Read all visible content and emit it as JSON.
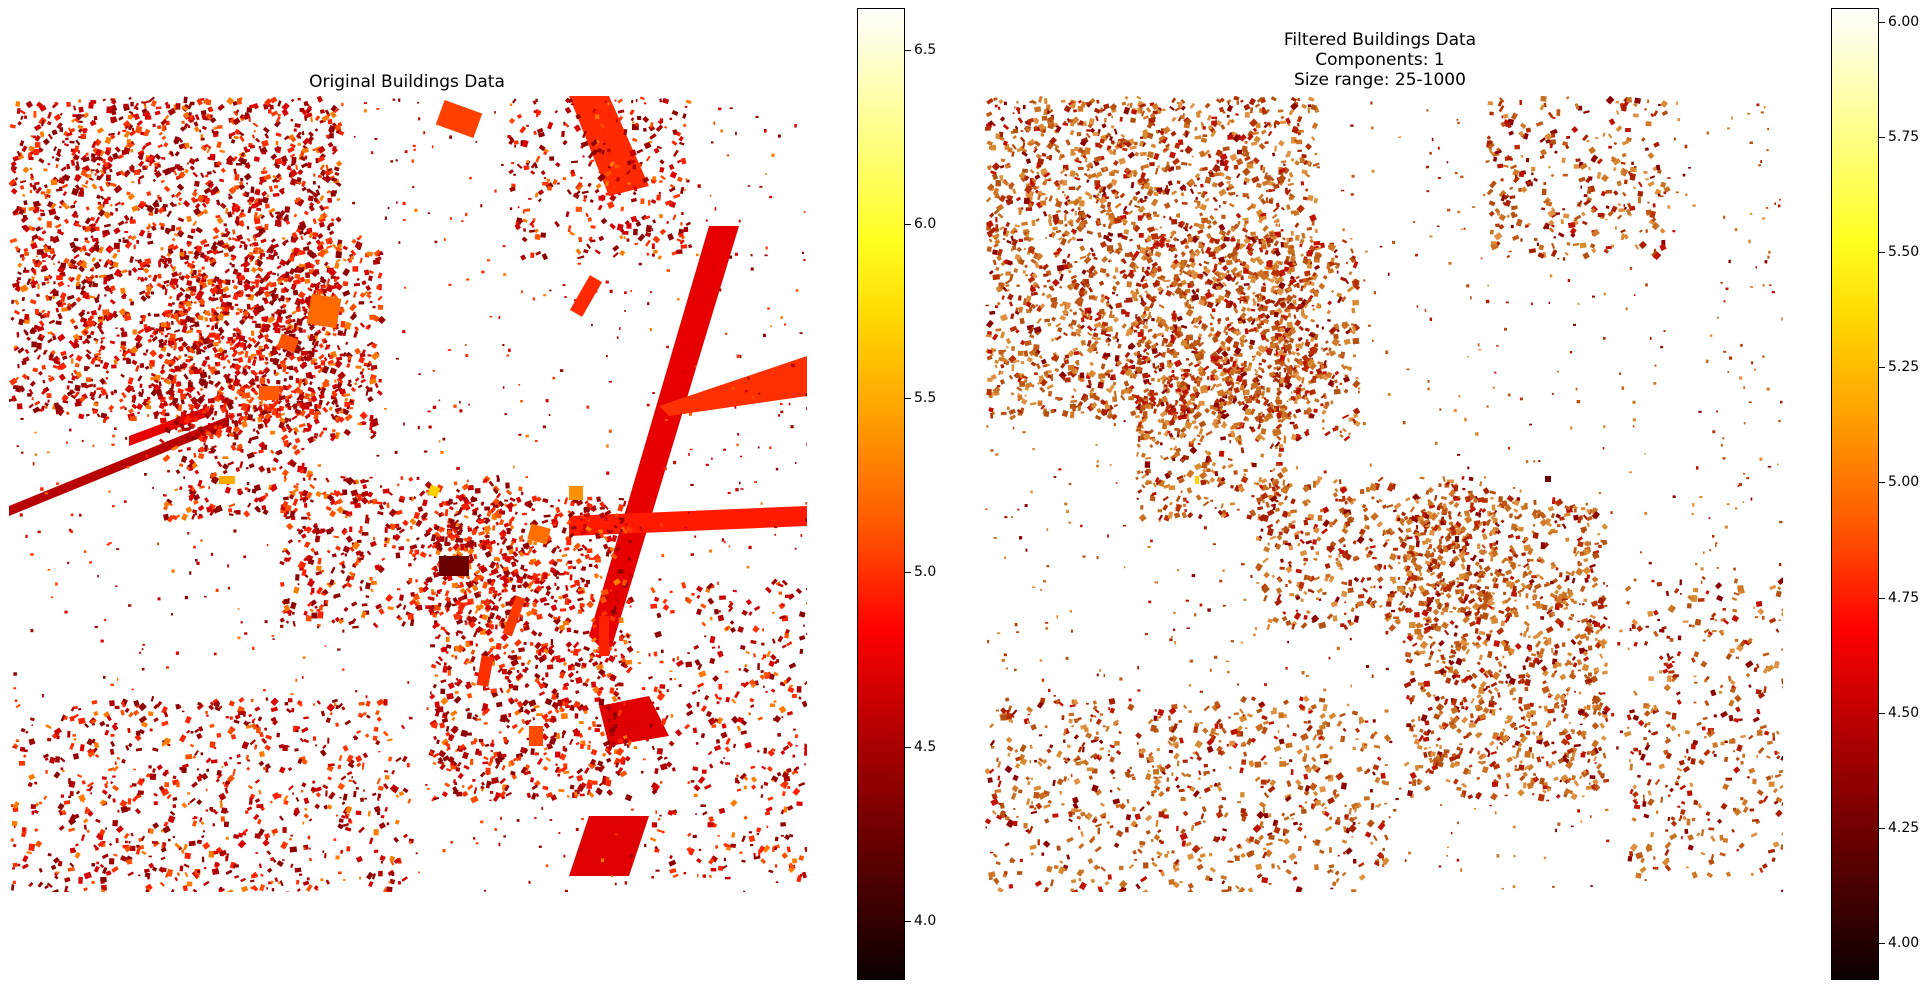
{
  "chart_data": [
    {
      "type": "heatmap",
      "title": "Original Buildings Data",
      "colormap": "hot",
      "axes": "off",
      "colorbar": {
        "range": [
          3.83,
          6.62
        ],
        "ticks": [
          "4.0",
          "4.5",
          "5.0",
          "5.5",
          "6.0",
          "6.5"
        ]
      }
    },
    {
      "type": "heatmap",
      "title_lines": [
        "Filtered Buildings Data",
        "Components: 1",
        "Size range: 25-1000"
      ],
      "colormap": "hot",
      "axes": "off",
      "colorbar": {
        "range": [
          3.92,
          6.03
        ],
        "ticks": [
          "4.00",
          "4.25",
          "4.50",
          "4.75",
          "5.00",
          "5.25",
          "5.50",
          "5.75",
          "6.00"
        ]
      }
    }
  ]
}
